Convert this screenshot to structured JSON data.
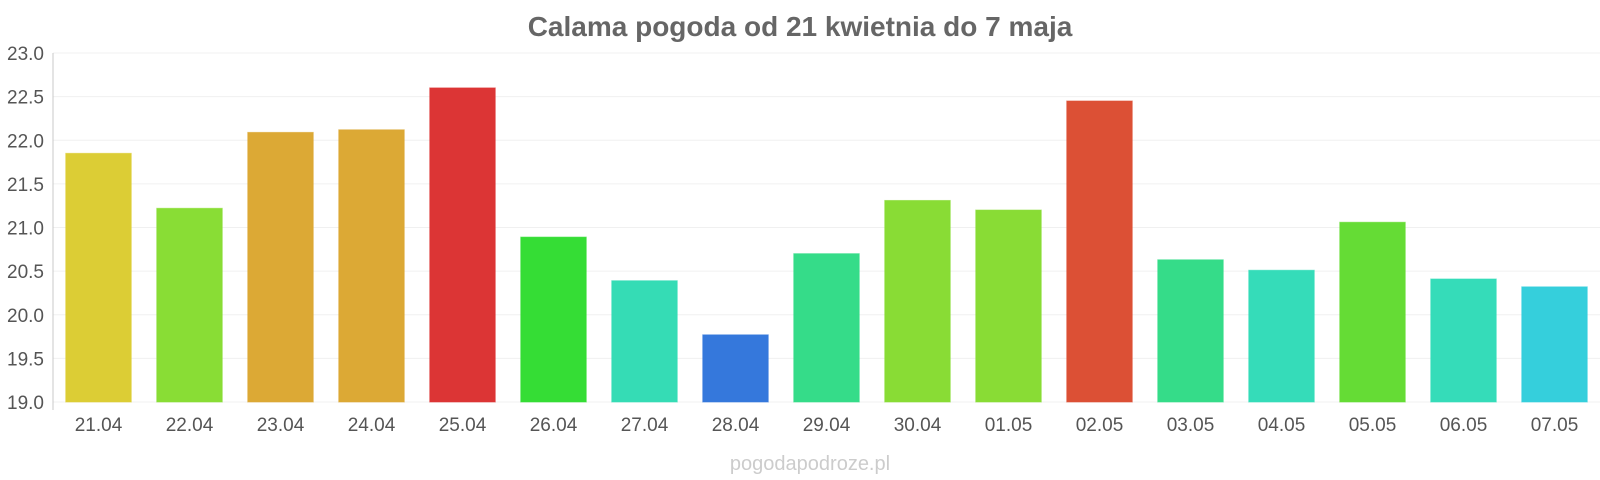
{
  "chart_data": {
    "type": "bar",
    "title": "Calama pogoda od 21 kwietnia do 7 maja",
    "xlabel": "",
    "ylabel": "",
    "categories": [
      "21.04",
      "22.04",
      "23.04",
      "24.04",
      "25.04",
      "26.04",
      "27.04",
      "28.04",
      "29.04",
      "30.04",
      "01.05",
      "02.05",
      "03.05",
      "04.05",
      "05.05",
      "06.05",
      "07.05"
    ],
    "values": [
      21.85,
      21.22,
      22.09,
      22.12,
      22.6,
      20.89,
      20.39,
      19.77,
      20.7,
      21.31,
      21.2,
      22.45,
      20.63,
      20.51,
      21.06,
      20.41,
      20.32
    ],
    "colors": [
      "#dccd35",
      "#89dd35",
      "#dca935",
      "#dca935",
      "#dc3535",
      "#35dd35",
      "#35dcb5",
      "#3578dc",
      "#35dc89",
      "#89dc35",
      "#89dc35",
      "#dc5035",
      "#35dc89",
      "#35dcb9",
      "#65dc35",
      "#35dcb9",
      "#35cfdc"
    ],
    "ylim": [
      19.0,
      23.0
    ],
    "yticks": [
      "19.0",
      "19.5",
      "20.0",
      "20.5",
      "21.0",
      "21.5",
      "22.0",
      "22.5",
      "23.0"
    ],
    "grid": true,
    "legend": "none"
  },
  "watermark": "pogodapodroze.pl"
}
